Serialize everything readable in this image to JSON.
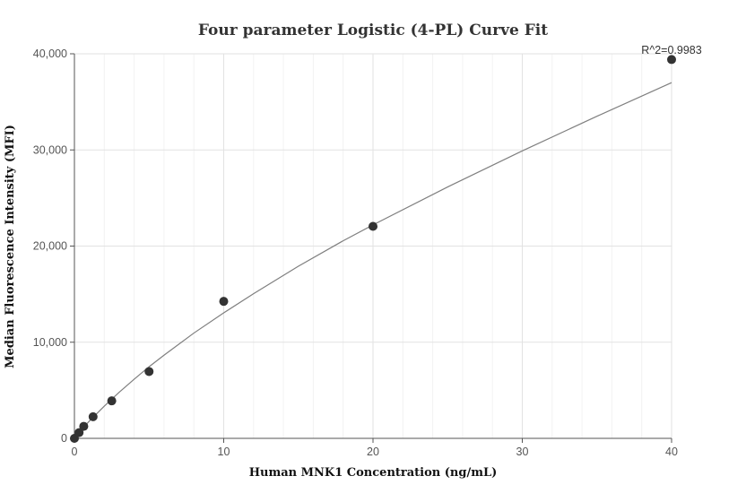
{
  "chart_data": {
    "type": "scatter",
    "title": "Four parameter Logistic (4-PL) Curve Fit",
    "xlabel": "Human MNK1 Concentration (ng/mL)",
    "ylabel": "Median Fluorescence Intensity (MFI)",
    "xlim": [
      0,
      40
    ],
    "ylim": [
      0,
      40000
    ],
    "x_ticks": [
      0,
      10,
      20,
      30,
      40
    ],
    "x_tick_labels": [
      "0",
      "10",
      "20",
      "30",
      "40"
    ],
    "y_ticks": [
      0,
      10000,
      20000,
      30000,
      40000
    ],
    "y_tick_labels": [
      "0",
      "10,000",
      "20,000",
      "30,000",
      "40,000"
    ],
    "grid": true,
    "annotation": "R^2=0.9983",
    "points": {
      "x": [
        0,
        0.3125,
        0.625,
        1.25,
        2.5,
        5,
        10,
        20,
        40
      ],
      "y": [
        0,
        600,
        1250,
        2250,
        3900,
        6950,
        14250,
        22050,
        39400
      ]
    },
    "fit_curve": {
      "model": "4PL",
      "x": [
        0,
        0.5,
        1,
        2,
        3,
        4,
        5,
        6,
        8,
        10,
        12,
        15,
        18,
        20,
        25,
        30,
        35,
        40
      ],
      "y": [
        0,
        950,
        1800,
        3350,
        4800,
        6150,
        7450,
        8650,
        10950,
        13050,
        15050,
        17900,
        20550,
        22200,
        26150,
        29900,
        33500,
        37000
      ]
    },
    "colors": {
      "points": "#333333",
      "curve": "#7f7f7f",
      "grid": "#e2e2e2"
    }
  }
}
